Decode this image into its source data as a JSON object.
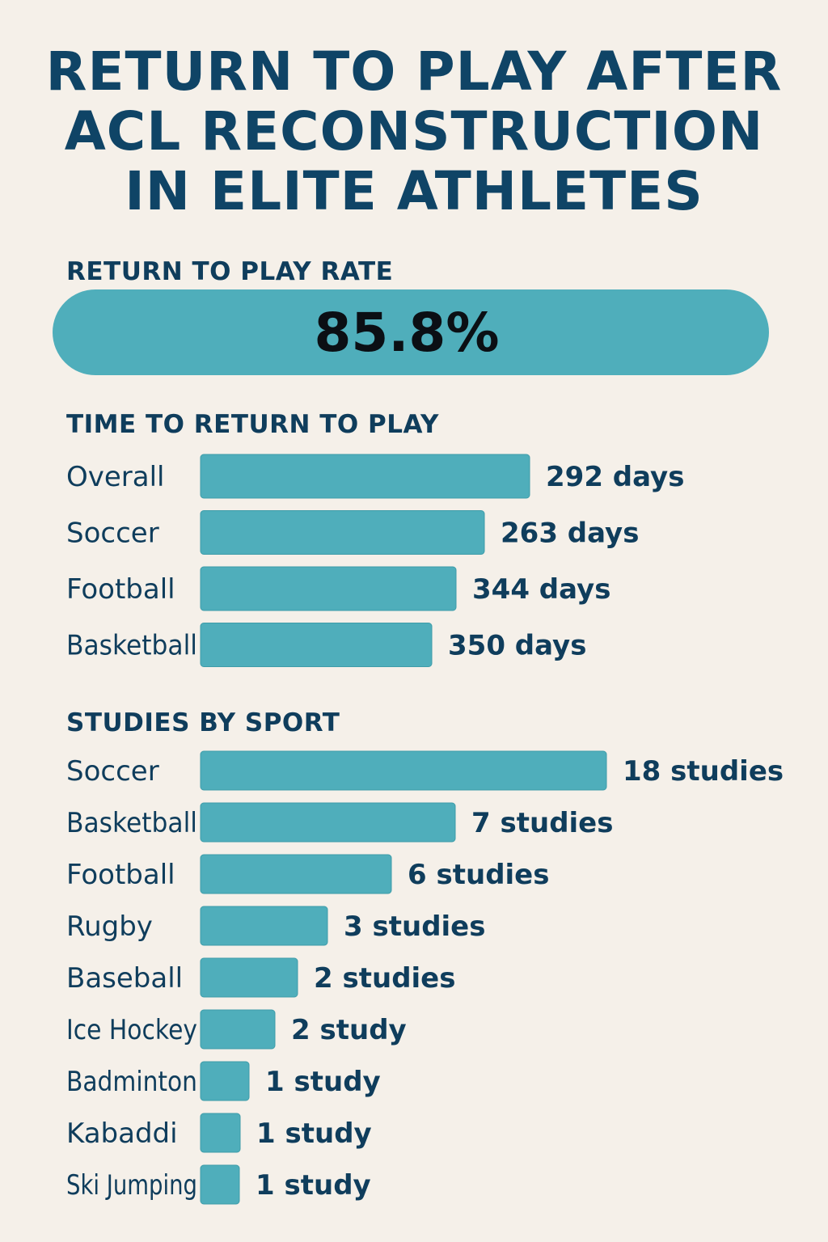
{
  "title_lines": [
    "RETURN TO PLAY AFTER",
    "ACL RECONSTRUCTION",
    "IN ELITE ATHLETES"
  ],
  "rate_section": {
    "heading": "RETURN TO PLAY RATE",
    "value_label": "85.8%",
    "value": 85.8
  },
  "colors": {
    "bar": "#4faebb",
    "bar_stroke": "#3e9ca9",
    "text": "#0f3d5c",
    "background": "#f5f0e9"
  },
  "chart_data": [
    {
      "type": "bar",
      "orientation": "horizontal",
      "title": "TIME TO RETURN TO PLAY",
      "categories": [
        "Overall",
        "Soccer",
        "Football",
        "Basketball"
      ],
      "values": [
        292,
        263,
        344,
        350
      ],
      "value_labels": [
        "292 days",
        "263 days",
        "344 days",
        "350 days"
      ],
      "bar_fractions": [
        0.81,
        0.7,
        0.63,
        0.57
      ],
      "unit": "days"
    },
    {
      "type": "bar",
      "orientation": "horizontal",
      "title": "STUDIES BY SPORT",
      "categories": [
        "Soccer",
        "Basketball",
        "Football",
        "Rugby",
        "Baseball",
        "Ice Hockey",
        "Badminton",
        "Kabaddi",
        "Ski Jumping"
      ],
      "values": [
        18,
        7,
        6,
        3,
        2,
        2,
        1,
        1,
        1
      ],
      "value_labels": [
        "18 studies",
        "7 studies",
        "6 studies",
        "3 studies",
        "2 studies",
        "2 study",
        "1 study",
        "1 study",
        "1 study"
      ],
      "bar_fractions": [
        1.0,
        0.627,
        0.47,
        0.313,
        0.24,
        0.183,
        0.12,
        0.098,
        0.096
      ],
      "unit": "studies"
    }
  ]
}
